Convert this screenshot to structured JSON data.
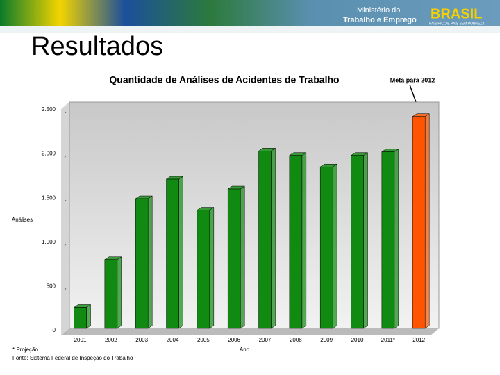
{
  "header": {
    "ministry_line1": "Ministério do",
    "ministry_line2": "Trabalho e Emprego",
    "logo": "BRASIL",
    "slogan": "PAÍS RICO É PAÍS SEM POBREZA"
  },
  "slide_title": "Resultados",
  "chart_data": {
    "type": "bar3d",
    "title": "Quantidade de Análises de Acidentes de Trabalho",
    "annotation": "Meta para 2012",
    "x_label": "Ano",
    "y_label": "Análises",
    "categories": [
      "2001",
      "2002",
      "2003",
      "2004",
      "2005",
      "2006",
      "2007",
      "2008",
      "2009",
      "2010",
      "2011*",
      "2012"
    ],
    "values": [
      240,
      780,
      1470,
      1690,
      1340,
      1580,
      2010,
      1960,
      1830,
      1960,
      2000,
      2400
    ],
    "colors": [
      "#118a11",
      "#118a11",
      "#118a11",
      "#118a11",
      "#118a11",
      "#118a11",
      "#118a11",
      "#118a11",
      "#118a11",
      "#118a11",
      "#118a11",
      "#ff5500"
    ],
    "ylim": [
      0,
      2500
    ],
    "yticks": [
      0,
      500,
      {
        "value": 1000,
        "label": "1.000"
      },
      {
        "value": 1500,
        "label": "1.500"
      },
      {
        "value": 2000,
        "label": "2.000"
      },
      {
        "value": 2500,
        "label": "2.500"
      }
    ]
  },
  "footnotes": [
    "* Projeção",
    "Fonte: Sistema Federal de Inspeção do Trabalho"
  ]
}
